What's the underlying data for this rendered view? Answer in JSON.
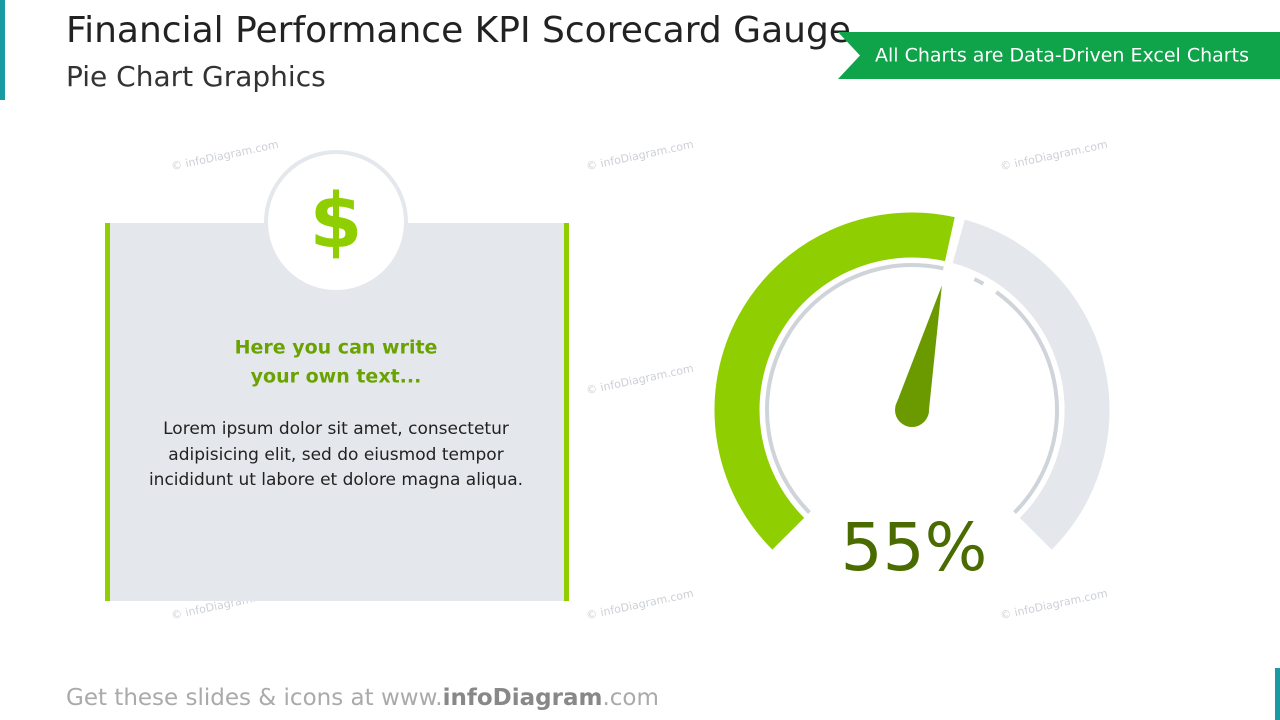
{
  "header": {
    "title": "Financial Performance KPI Scorecard Gauge",
    "subtitle": "Pie Chart Graphics"
  },
  "banner": "All Charts are Data-Driven Excel Charts",
  "watermark": "© infoDiagram.com",
  "card": {
    "icon": "$",
    "heading": [
      "Here you can write",
      "your own text..."
    ],
    "body": [
      "Lorem ipsum dolor sit amet, consectetur",
      "adipisicing elit, sed do eiusmod tempor",
      "incididunt ut labore et dolore magna aliqua."
    ]
  },
  "footer": {
    "prefix": "Get these slides & icons at www.",
    "brand": "infoDiagram",
    "suffix": ".com"
  },
  "chart_data": {
    "type": "gauge",
    "values": [
      55
    ],
    "value_labels": [
      "55%"
    ],
    "ylim": [
      0,
      100
    ],
    "color": "#8fce00",
    "track_color": "#e4e7ec",
    "needle_color": "#6a9a00"
  }
}
